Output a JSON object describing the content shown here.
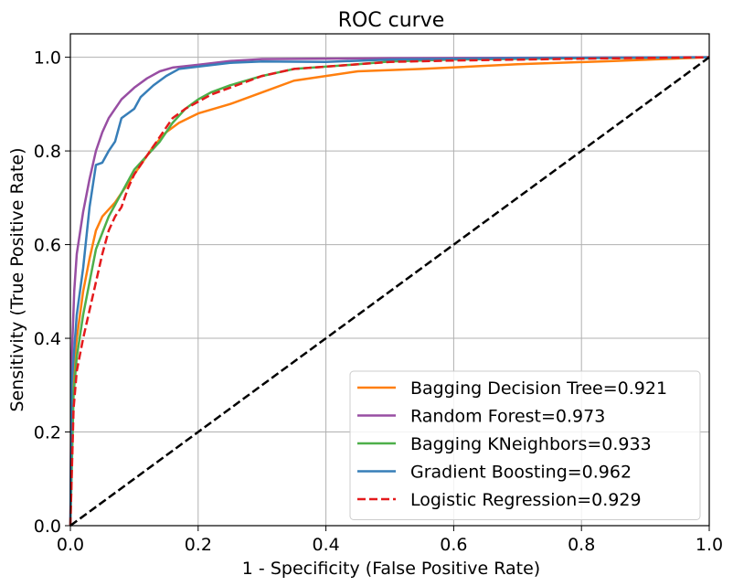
{
  "chart_data": {
    "type": "line",
    "title": "ROC curve",
    "xlabel": "1 - Specificity (False Positive Rate)",
    "ylabel": "Sensitivity (True Positive Rate)",
    "xlim": [
      0,
      1
    ],
    "ylim": [
      0,
      1.05
    ],
    "xticks": [
      "0.0",
      "0.2",
      "0.4",
      "0.6",
      "0.8",
      "1.0"
    ],
    "yticks": [
      "0.0",
      "0.2",
      "0.4",
      "0.6",
      "0.8",
      "1.0"
    ],
    "grid": true,
    "legend_position": "lower-right",
    "series": [
      {
        "name": "Bagging Decision Tree=0.921",
        "color": "#ff7f0e",
        "dash": "solid",
        "points": [
          [
            0,
            0
          ],
          [
            0.003,
            0.3
          ],
          [
            0.01,
            0.4
          ],
          [
            0.02,
            0.5
          ],
          [
            0.03,
            0.57
          ],
          [
            0.04,
            0.63
          ],
          [
            0.05,
            0.66
          ],
          [
            0.07,
            0.69
          ],
          [
            0.09,
            0.73
          ],
          [
            0.11,
            0.77
          ],
          [
            0.13,
            0.81
          ],
          [
            0.15,
            0.84
          ],
          [
            0.17,
            0.86
          ],
          [
            0.2,
            0.88
          ],
          [
            0.25,
            0.9
          ],
          [
            0.3,
            0.925
          ],
          [
            0.35,
            0.95
          ],
          [
            0.4,
            0.96
          ],
          [
            0.45,
            0.97
          ],
          [
            0.55,
            0.975
          ],
          [
            0.7,
            0.985
          ],
          [
            0.85,
            0.992
          ],
          [
            1.0,
            1.0
          ]
        ]
      },
      {
        "name": "Random Forest=0.973",
        "color": "#984ea3",
        "dash": "solid",
        "points": [
          [
            0,
            0
          ],
          [
            0.002,
            0.35
          ],
          [
            0.006,
            0.5
          ],
          [
            0.01,
            0.58
          ],
          [
            0.02,
            0.67
          ],
          [
            0.03,
            0.74
          ],
          [
            0.04,
            0.8
          ],
          [
            0.05,
            0.84
          ],
          [
            0.06,
            0.87
          ],
          [
            0.07,
            0.89
          ],
          [
            0.08,
            0.91
          ],
          [
            0.1,
            0.935
          ],
          [
            0.12,
            0.955
          ],
          [
            0.14,
            0.97
          ],
          [
            0.16,
            0.978
          ],
          [
            0.18,
            0.981
          ],
          [
            0.2,
            0.984
          ],
          [
            0.25,
            0.992
          ],
          [
            0.3,
            0.996
          ],
          [
            0.5,
            0.998
          ],
          [
            1.0,
            1.0
          ]
        ]
      },
      {
        "name": "Bagging KNeighbors=0.933",
        "color": "#4daf4a",
        "dash": "solid",
        "points": [
          [
            0,
            0
          ],
          [
            0.005,
            0.28
          ],
          [
            0.01,
            0.36
          ],
          [
            0.02,
            0.45
          ],
          [
            0.03,
            0.52
          ],
          [
            0.04,
            0.59
          ],
          [
            0.06,
            0.66
          ],
          [
            0.08,
            0.71
          ],
          [
            0.1,
            0.76
          ],
          [
            0.12,
            0.79
          ],
          [
            0.14,
            0.82
          ],
          [
            0.16,
            0.86
          ],
          [
            0.18,
            0.89
          ],
          [
            0.2,
            0.91
          ],
          [
            0.22,
            0.925
          ],
          [
            0.25,
            0.94
          ],
          [
            0.3,
            0.96
          ],
          [
            0.35,
            0.975
          ],
          [
            0.4,
            0.98
          ],
          [
            0.45,
            0.985
          ],
          [
            0.5,
            0.991
          ],
          [
            0.6,
            0.995
          ],
          [
            0.8,
            0.998
          ],
          [
            1.0,
            1.0
          ]
        ]
      },
      {
        "name": "Gradient Boosting=0.962",
        "color": "#377eb8",
        "dash": "solid",
        "points": [
          [
            0,
            0
          ],
          [
            0.002,
            0.3
          ],
          [
            0.01,
            0.45
          ],
          [
            0.02,
            0.55
          ],
          [
            0.03,
            0.68
          ],
          [
            0.04,
            0.77
          ],
          [
            0.05,
            0.775
          ],
          [
            0.06,
            0.8
          ],
          [
            0.07,
            0.82
          ],
          [
            0.08,
            0.87
          ],
          [
            0.09,
            0.88
          ],
          [
            0.1,
            0.89
          ],
          [
            0.11,
            0.915
          ],
          [
            0.13,
            0.94
          ],
          [
            0.15,
            0.96
          ],
          [
            0.17,
            0.975
          ],
          [
            0.2,
            0.98
          ],
          [
            0.25,
            0.988
          ],
          [
            0.3,
            0.991
          ],
          [
            0.4,
            0.99
          ],
          [
            0.5,
            0.995
          ],
          [
            0.7,
            0.998
          ],
          [
            1.0,
            1.0
          ]
        ]
      },
      {
        "name": "Logistic Regression=0.929",
        "color": "#e41a1c",
        "dash": "dashed",
        "points": [
          [
            0,
            0
          ],
          [
            0.005,
            0.25
          ],
          [
            0.01,
            0.33
          ],
          [
            0.02,
            0.4
          ],
          [
            0.03,
            0.46
          ],
          [
            0.04,
            0.52
          ],
          [
            0.05,
            0.58
          ],
          [
            0.06,
            0.63
          ],
          [
            0.07,
            0.66
          ],
          [
            0.08,
            0.68
          ],
          [
            0.09,
            0.72
          ],
          [
            0.1,
            0.75
          ],
          [
            0.12,
            0.79
          ],
          [
            0.14,
            0.83
          ],
          [
            0.16,
            0.87
          ],
          [
            0.18,
            0.89
          ],
          [
            0.2,
            0.905
          ],
          [
            0.22,
            0.92
          ],
          [
            0.25,
            0.935
          ],
          [
            0.3,
            0.96
          ],
          [
            0.35,
            0.975
          ],
          [
            0.4,
            0.98
          ],
          [
            0.45,
            0.985
          ],
          [
            0.5,
            0.99
          ],
          [
            0.6,
            0.993
          ],
          [
            0.8,
            0.997
          ],
          [
            1.0,
            1.0
          ]
        ]
      },
      {
        "name": "",
        "color": "#000000",
        "dash": "dashed",
        "points": [
          [
            0,
            0
          ],
          [
            1,
            1
          ]
        ]
      }
    ]
  }
}
